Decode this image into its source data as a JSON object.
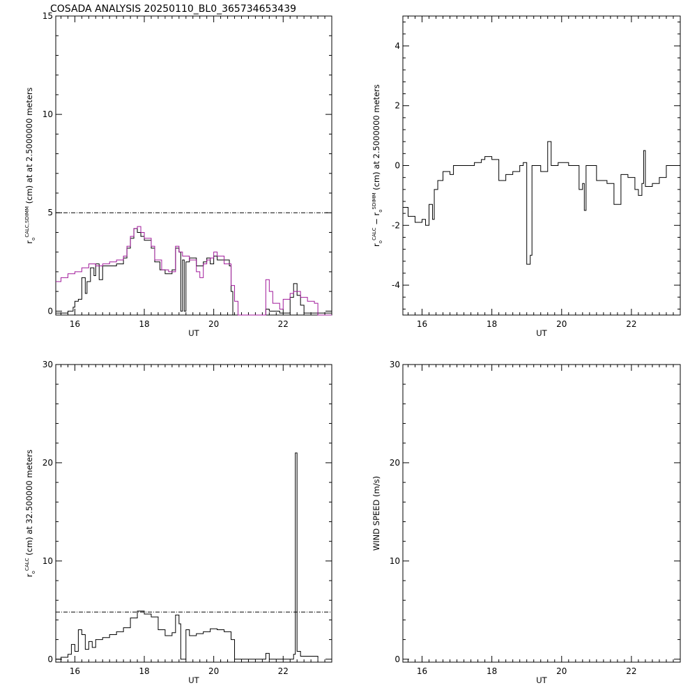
{
  "page_title": "COSADA ANALYSIS 20250110_BL0_365734653439",
  "chart_data": [
    {
      "type": "line",
      "id": "p1",
      "xlim": [
        15.45,
        23.4
      ],
      "ylim": [
        -0.2,
        15
      ],
      "xticks": [
        16,
        18,
        20,
        22
      ],
      "yticks": [
        0,
        5,
        10,
        15
      ],
      "xlabel": "UT",
      "ylabel": {
        "main": "r",
        "sub": "o",
        "sup": "CALC,SDIMM",
        "rest": "(cm)  at  at 2.5000000 meters"
      },
      "reference_line": 5,
      "series": [
        {
          "color": "#000000",
          "points": [
            [
              15.45,
              -0.1
            ],
            [
              15.8,
              0.0
            ],
            [
              15.95,
              0.2
            ],
            [
              16.0,
              0.5
            ],
            [
              16.1,
              0.6
            ],
            [
              16.2,
              1.7
            ],
            [
              16.3,
              0.9
            ],
            [
              16.35,
              1.5
            ],
            [
              16.45,
              2.2
            ],
            [
              16.55,
              1.8
            ],
            [
              16.6,
              2.4
            ],
            [
              16.7,
              1.6
            ],
            [
              16.8,
              2.3
            ],
            [
              16.9,
              2.3
            ],
            [
              17.0,
              2.3
            ],
            [
              17.2,
              2.4
            ],
            [
              17.4,
              2.7
            ],
            [
              17.5,
              3.2
            ],
            [
              17.6,
              3.7
            ],
            [
              17.7,
              4.2
            ],
            [
              17.8,
              4.0
            ],
            [
              17.9,
              3.8
            ],
            [
              18.0,
              3.6
            ],
            [
              18.2,
              3.2
            ],
            [
              18.3,
              2.5
            ],
            [
              18.45,
              2.1
            ],
            [
              18.6,
              1.9
            ],
            [
              18.8,
              2.1
            ],
            [
              18.9,
              3.2
            ],
            [
              19.0,
              3.0
            ],
            [
              19.05,
              0.0
            ],
            [
              19.1,
              2.6
            ],
            [
              19.15,
              0.0
            ],
            [
              19.2,
              2.5
            ],
            [
              19.3,
              2.7
            ],
            [
              19.5,
              2.3
            ],
            [
              19.7,
              2.5
            ],
            [
              19.8,
              2.7
            ],
            [
              19.9,
              2.4
            ],
            [
              20.0,
              2.8
            ],
            [
              20.1,
              2.6
            ],
            [
              20.3,
              2.6
            ],
            [
              20.45,
              2.3
            ],
            [
              20.5,
              1.0
            ],
            [
              20.55,
              -0.2
            ],
            [
              21.5,
              0.1
            ],
            [
              21.6,
              0.0
            ],
            [
              21.9,
              -0.1
            ],
            [
              22.2,
              0.7
            ],
            [
              22.3,
              1.4
            ],
            [
              22.4,
              0.8
            ],
            [
              22.5,
              0.3
            ],
            [
              22.6,
              -0.1
            ],
            [
              23.4,
              -0.2
            ]
          ]
        },
        {
          "color": "#a0199a",
          "points": [
            [
              15.45,
              1.5
            ],
            [
              15.6,
              1.7
            ],
            [
              15.8,
              1.9
            ],
            [
              16.0,
              2.0
            ],
            [
              16.2,
              2.2
            ],
            [
              16.4,
              2.4
            ],
            [
              16.6,
              2.3
            ],
            [
              16.8,
              2.4
            ],
            [
              17.0,
              2.5
            ],
            [
              17.2,
              2.6
            ],
            [
              17.4,
              2.8
            ],
            [
              17.5,
              3.3
            ],
            [
              17.6,
              3.8
            ],
            [
              17.7,
              4.2
            ],
            [
              17.8,
              4.3
            ],
            [
              17.9,
              4.0
            ],
            [
              18.0,
              3.7
            ],
            [
              18.2,
              3.3
            ],
            [
              18.3,
              2.6
            ],
            [
              18.5,
              2.1
            ],
            [
              18.7,
              2.0
            ],
            [
              18.9,
              3.3
            ],
            [
              19.0,
              3.0
            ],
            [
              19.1,
              2.8
            ],
            [
              19.3,
              2.6
            ],
            [
              19.5,
              2.0
            ],
            [
              19.6,
              1.7
            ],
            [
              19.7,
              2.4
            ],
            [
              19.8,
              2.6
            ],
            [
              19.9,
              2.7
            ],
            [
              20.0,
              3.0
            ],
            [
              20.1,
              2.8
            ],
            [
              20.3,
              2.4
            ],
            [
              20.5,
              1.3
            ],
            [
              20.6,
              0.5
            ],
            [
              20.7,
              -0.2
            ],
            [
              21.5,
              1.6
            ],
            [
              21.6,
              1.0
            ],
            [
              21.7,
              0.4
            ],
            [
              21.9,
              0.1
            ],
            [
              22.0,
              0.6
            ],
            [
              22.2,
              0.9
            ],
            [
              22.3,
              1.0
            ],
            [
              22.5,
              0.7
            ],
            [
              22.7,
              0.5
            ],
            [
              22.9,
              0.4
            ],
            [
              23.0,
              -0.2
            ],
            [
              23.4,
              -0.2
            ]
          ]
        }
      ]
    },
    {
      "type": "line",
      "id": "p2",
      "xlim": [
        15.45,
        23.4
      ],
      "ylim": [
        -5,
        5
      ],
      "xticks": [
        16,
        18,
        20,
        22
      ],
      "yticks": [
        -4,
        -2,
        0,
        2,
        4
      ],
      "xlabel": "UT",
      "ylabel": {
        "main": "r",
        "sub": "o",
        "sup": "CALC",
        "mid": " − r",
        "sub2": "o",
        "sup2": "SDIMM",
        "rest": "(cm) at 2.5000000 meters"
      },
      "series": [
        {
          "color": "#000000",
          "points": [
            [
              15.45,
              -1.4
            ],
            [
              15.6,
              -1.7
            ],
            [
              15.8,
              -1.9
            ],
            [
              16.0,
              -1.8
            ],
            [
              16.1,
              -2.0
            ],
            [
              16.2,
              -1.3
            ],
            [
              16.3,
              -1.8
            ],
            [
              16.35,
              -0.8
            ],
            [
              16.45,
              -0.5
            ],
            [
              16.6,
              -0.2
            ],
            [
              16.8,
              -0.3
            ],
            [
              16.9,
              0.0
            ],
            [
              17.2,
              0.0
            ],
            [
              17.5,
              0.1
            ],
            [
              17.7,
              0.2
            ],
            [
              17.8,
              0.3
            ],
            [
              18.0,
              0.2
            ],
            [
              18.2,
              -0.5
            ],
            [
              18.4,
              -0.3
            ],
            [
              18.6,
              -0.2
            ],
            [
              18.8,
              0.0
            ],
            [
              18.9,
              0.1
            ],
            [
              19.0,
              -3.3
            ],
            [
              19.1,
              -3.0
            ],
            [
              19.15,
              0.0
            ],
            [
              19.4,
              -0.2
            ],
            [
              19.6,
              0.8
            ],
            [
              19.7,
              0.0
            ],
            [
              19.9,
              0.1
            ],
            [
              20.2,
              0.0
            ],
            [
              20.5,
              -0.8
            ],
            [
              20.6,
              -0.6
            ],
            [
              20.65,
              -1.5
            ],
            [
              20.7,
              0.0
            ],
            [
              21.0,
              -0.5
            ],
            [
              21.3,
              -0.6
            ],
            [
              21.5,
              -1.3
            ],
            [
              21.7,
              -0.3
            ],
            [
              21.9,
              -0.4
            ],
            [
              22.1,
              -0.8
            ],
            [
              22.2,
              -1.0
            ],
            [
              22.3,
              -0.6
            ],
            [
              22.35,
              0.5
            ],
            [
              22.4,
              -0.7
            ],
            [
              22.6,
              -0.6
            ],
            [
              22.8,
              -0.4
            ],
            [
              23.0,
              0.0
            ],
            [
              23.4,
              0.0
            ]
          ]
        }
      ]
    },
    {
      "type": "line",
      "id": "p3",
      "xlim": [
        15.45,
        23.4
      ],
      "ylim": [
        -0.3,
        30
      ],
      "xticks": [
        16,
        18,
        20,
        22
      ],
      "yticks": [
        0,
        10,
        20,
        30
      ],
      "xlabel": "UT",
      "ylabel": {
        "main": "r",
        "sub": "o",
        "sup": "CALC",
        "rest": "(cm) at 32.500000 meters"
      },
      "reference_line": 4.8,
      "series": [
        {
          "color": "#000000",
          "points": [
            [
              15.45,
              0.0
            ],
            [
              15.6,
              0.2
            ],
            [
              15.8,
              0.5
            ],
            [
              15.9,
              1.5
            ],
            [
              16.0,
              0.8
            ],
            [
              16.1,
              3.0
            ],
            [
              16.2,
              2.5
            ],
            [
              16.3,
              1.0
            ],
            [
              16.4,
              1.8
            ],
            [
              16.5,
              1.2
            ],
            [
              16.6,
              2.0
            ],
            [
              16.8,
              2.2
            ],
            [
              17.0,
              2.5
            ],
            [
              17.2,
              2.8
            ],
            [
              17.4,
              3.2
            ],
            [
              17.6,
              4.2
            ],
            [
              17.8,
              4.9
            ],
            [
              18.0,
              4.6
            ],
            [
              18.2,
              4.3
            ],
            [
              18.4,
              3.0
            ],
            [
              18.6,
              2.4
            ],
            [
              18.8,
              2.7
            ],
            [
              18.9,
              4.5
            ],
            [
              19.0,
              3.6
            ],
            [
              19.05,
              0.0
            ],
            [
              19.2,
              3.0
            ],
            [
              19.3,
              2.4
            ],
            [
              19.5,
              2.6
            ],
            [
              19.7,
              2.8
            ],
            [
              19.9,
              3.1
            ],
            [
              20.1,
              3.0
            ],
            [
              20.3,
              2.8
            ],
            [
              20.5,
              2.0
            ],
            [
              20.6,
              0.0
            ],
            [
              21.5,
              0.6
            ],
            [
              21.6,
              0.0
            ],
            [
              22.3,
              0.5
            ],
            [
              22.35,
              21.0
            ],
            [
              22.4,
              0.8
            ],
            [
              22.5,
              0.3
            ],
            [
              23.0,
              0.0
            ]
          ]
        }
      ]
    },
    {
      "type": "line",
      "id": "p4",
      "xlim": [
        15.45,
        23.4
      ],
      "ylim": [
        -0.3,
        30
      ],
      "xticks": [
        16,
        18,
        20,
        22
      ],
      "yticks": [
        0,
        10,
        20,
        30
      ],
      "xlabel": "UT",
      "ylabel": {
        "main": "WIND SPEED (m/s)"
      },
      "series": []
    }
  ]
}
